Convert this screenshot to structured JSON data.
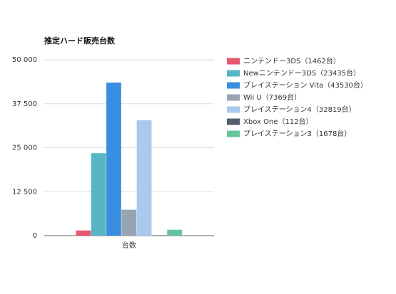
{
  "chart_data": {
    "type": "bar",
    "title": "推定ハード販売台数",
    "categories": [
      "台数"
    ],
    "series": [
      {
        "name": "ニンテンドー3DS（1462台）",
        "color": "#e8566f",
        "values": [
          1462
        ]
      },
      {
        "name": "Newニンテンドー3DS（23435台）",
        "color": "#56b6c6",
        "values": [
          23435
        ]
      },
      {
        "name": "プレイステーション Vita（43530台）",
        "color": "#3a8ee0",
        "values": [
          43530
        ]
      },
      {
        "name": "Wii U（7369台）",
        "color": "#97a5b2",
        "values": [
          7369
        ]
      },
      {
        "name": "プレイステーション4（32819台）",
        "color": "#a9c9ee",
        "values": [
          32819
        ]
      },
      {
        "name": "Xbox One（112台）",
        "color": "#555e6e",
        "values": [
          112
        ]
      },
      {
        "name": "プレイステーション3（1678台）",
        "color": "#65c49a",
        "values": [
          1678
        ]
      }
    ],
    "ylim": [
      0,
      50000
    ],
    "yticks": [
      {
        "value": 0,
        "label": "0"
      },
      {
        "value": 12500,
        "label": "12 500"
      },
      {
        "value": 25000,
        "label": "25 000"
      },
      {
        "value": 37500,
        "label": "37 500"
      },
      {
        "value": 50000,
        "label": "50 000"
      }
    ],
    "grid": true,
    "legend": "right"
  }
}
